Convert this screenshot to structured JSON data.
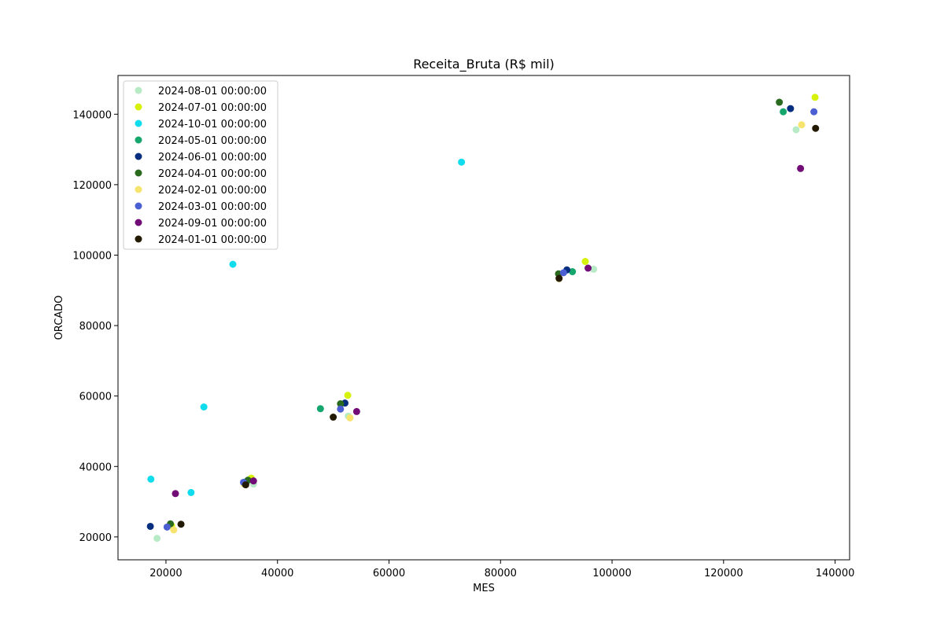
{
  "chart_data": {
    "type": "scatter",
    "title": "Receita_Bruta (R$ mil)",
    "xlabel": "MES",
    "ylabel": "ORCADO",
    "xlim": [
      11400,
      142600
    ],
    "ylim": [
      13500,
      151000
    ],
    "xticks": [
      20000,
      40000,
      60000,
      80000,
      100000,
      120000,
      140000
    ],
    "yticks": [
      20000,
      40000,
      60000,
      80000,
      100000,
      120000,
      140000
    ],
    "grid": false,
    "legend_position": "top-left",
    "series": [
      {
        "name": "2024-08-01 00:00:00",
        "color": "#b7ebc6",
        "points": [
          [
            18400,
            19600
          ],
          [
            35700,
            35000
          ],
          [
            52700,
            54300
          ],
          [
            96700,
            96000
          ],
          [
            133000,
            135600
          ]
        ]
      },
      {
        "name": "2024-07-01 00:00:00",
        "color": "#d6f20a",
        "points": [
          [
            21000,
            23200
          ],
          [
            35300,
            36700
          ],
          [
            52600,
            60200
          ],
          [
            95200,
            98200
          ],
          [
            136400,
            144800
          ]
        ]
      },
      {
        "name": "2024-10-01 00:00:00",
        "color": "#0fdcec",
        "points": [
          [
            17300,
            36400
          ],
          [
            24500,
            32600
          ],
          [
            26800,
            56900
          ],
          [
            32000,
            97400
          ],
          [
            73000,
            126400
          ]
        ]
      },
      {
        "name": "2024-05-01 00:00:00",
        "color": "#15a66d",
        "points": [
          [
            34500,
            35800
          ],
          [
            47700,
            56400
          ],
          [
            92900,
            95300
          ],
          [
            130700,
            140700
          ]
        ]
      },
      {
        "name": "2024-06-01 00:00:00",
        "color": "#062e7f",
        "points": [
          [
            17200,
            23000
          ],
          [
            52100,
            58000
          ],
          [
            91900,
            95800
          ],
          [
            132000,
            141600
          ]
        ]
      },
      {
        "name": "2024-04-01 00:00:00",
        "color": "#2a6a1f",
        "points": [
          [
            20800,
            23700
          ],
          [
            34700,
            36100
          ],
          [
            51300,
            57800
          ],
          [
            90400,
            94700
          ],
          [
            130000,
            143400
          ]
        ]
      },
      {
        "name": "2024-02-01 00:00:00",
        "color": "#f6e46e",
        "points": [
          [
            21400,
            22000
          ],
          [
            34000,
            35000
          ],
          [
            53000,
            53800
          ],
          [
            90500,
            93300
          ],
          [
            134000,
            137000
          ]
        ]
      },
      {
        "name": "2024-03-01 00:00:00",
        "color": "#4b5fd3",
        "points": [
          [
            20200,
            22800
          ],
          [
            33900,
            35500
          ],
          [
            51300,
            56300
          ],
          [
            91300,
            95000
          ],
          [
            136200,
            140700
          ]
        ]
      },
      {
        "name": "2024-09-01 00:00:00",
        "color": "#720d78",
        "points": [
          [
            21700,
            32300
          ],
          [
            35700,
            35900
          ],
          [
            54200,
            55600
          ],
          [
            95700,
            96300
          ],
          [
            133800,
            124600
          ]
        ]
      },
      {
        "name": "2024-01-01 00:00:00",
        "color": "#231a03",
        "points": [
          [
            22700,
            23600
          ],
          [
            34300,
            34800
          ],
          [
            50000,
            54000
          ],
          [
            90500,
            93400
          ],
          [
            136500,
            136000
          ]
        ]
      }
    ]
  }
}
